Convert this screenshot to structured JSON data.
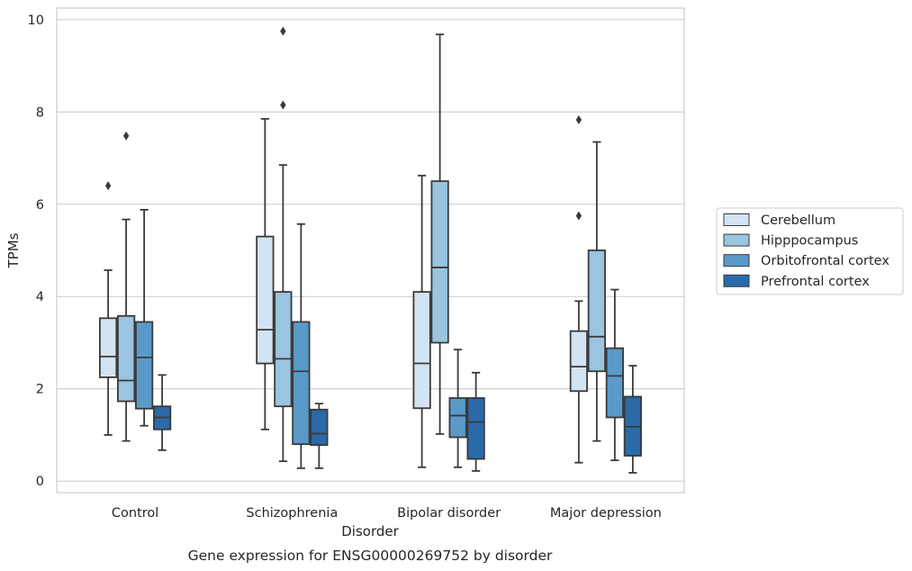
{
  "chart_data": {
    "type": "box",
    "title": "",
    "caption": "Gene expression for ENSG00000269752 by disorder",
    "xlabel": "Disorder",
    "ylabel": "TPMs",
    "ylim": [
      -0.25,
      10.25
    ],
    "yticks": [
      0,
      2,
      4,
      6,
      8,
      10
    ],
    "grid": true,
    "legend_position": "right",
    "categories": [
      "Control",
      "Schizophrenia",
      "Bipolar disorder",
      "Major depression"
    ],
    "series": [
      {
        "name": "Cerebellum",
        "color": "#d3e3f1",
        "boxes": [
          {
            "whislo": 1.0,
            "q1": 2.25,
            "med": 2.7,
            "q3": 3.53,
            "whishi": 4.57,
            "fliers": [
              6.4
            ]
          },
          {
            "whislo": 1.12,
            "q1": 2.55,
            "med": 3.28,
            "q3": 5.3,
            "whishi": 7.85,
            "fliers": []
          },
          {
            "whislo": 0.3,
            "q1": 1.58,
            "med": 2.55,
            "q3": 4.1,
            "whishi": 6.62,
            "fliers": []
          },
          {
            "whislo": 0.4,
            "q1": 1.95,
            "med": 2.48,
            "q3": 3.25,
            "whishi": 3.9,
            "fliers": [
              5.75,
              7.83
            ]
          }
        ]
      },
      {
        "name": "Hipppocampus",
        "color": "#9ac4df",
        "boxes": [
          {
            "whislo": 0.87,
            "q1": 1.73,
            "med": 2.18,
            "q3": 3.58,
            "whishi": 5.67,
            "fliers": [
              7.48
            ]
          },
          {
            "whislo": 0.43,
            "q1": 1.62,
            "med": 2.65,
            "q3": 4.1,
            "whishi": 6.85,
            "fliers": [
              8.15,
              9.75
            ]
          },
          {
            "whislo": 1.02,
            "q1": 3.0,
            "med": 4.63,
            "q3": 6.5,
            "whishi": 9.68,
            "fliers": []
          },
          {
            "whislo": 0.87,
            "q1": 2.38,
            "med": 3.13,
            "q3": 5.0,
            "whishi": 7.35,
            "fliers": []
          }
        ]
      },
      {
        "name": "Orbitofrontal cortex",
        "color": "#5a9ac9",
        "boxes": [
          {
            "whislo": 1.2,
            "q1": 1.57,
            "med": 2.68,
            "q3": 3.45,
            "whishi": 5.88,
            "fliers": []
          },
          {
            "whislo": 0.28,
            "q1": 0.8,
            "med": 2.38,
            "q3": 3.45,
            "whishi": 5.57,
            "fliers": []
          },
          {
            "whislo": 0.3,
            "q1": 0.95,
            "med": 1.42,
            "q3": 1.8,
            "whishi": 2.85,
            "fliers": []
          },
          {
            "whislo": 0.45,
            "q1": 1.38,
            "med": 2.28,
            "q3": 2.88,
            "whishi": 4.15,
            "fliers": []
          }
        ]
      },
      {
        "name": "Prefrontal cortex",
        "color": "#2b6aa8",
        "boxes": [
          {
            "whislo": 0.67,
            "q1": 1.12,
            "med": 1.38,
            "q3": 1.62,
            "whishi": 2.3,
            "fliers": []
          },
          {
            "whislo": 0.28,
            "q1": 0.78,
            "med": 1.03,
            "q3": 1.55,
            "whishi": 1.68,
            "fliers": []
          },
          {
            "whislo": 0.22,
            "q1": 0.48,
            "med": 1.28,
            "q3": 1.8,
            "whishi": 2.35,
            "fliers": []
          },
          {
            "whislo": 0.18,
            "q1": 0.55,
            "med": 1.18,
            "q3": 1.83,
            "whishi": 2.5,
            "fliers": []
          }
        ]
      }
    ]
  }
}
